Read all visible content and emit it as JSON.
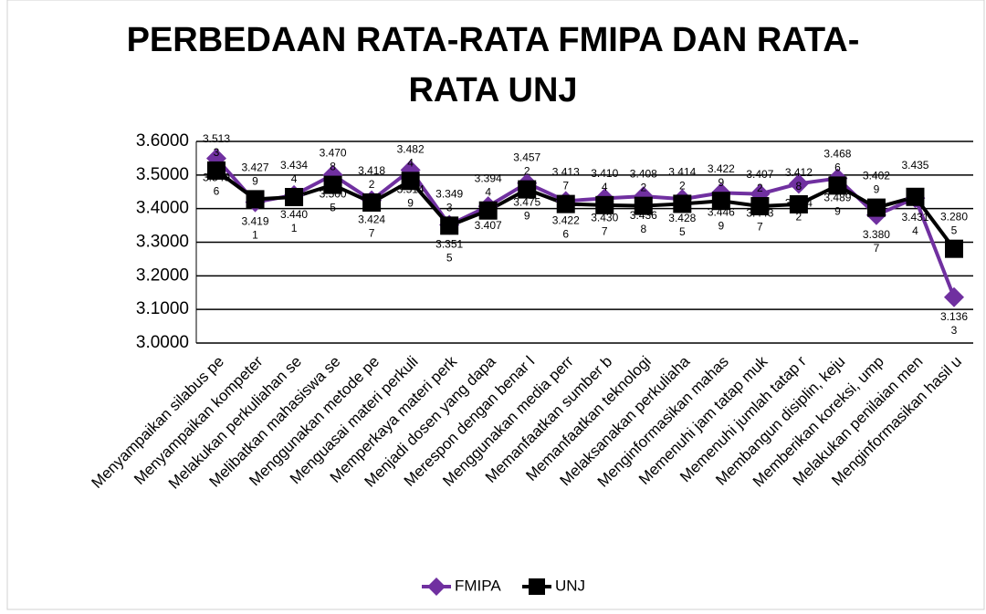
{
  "chart_data": {
    "type": "line",
    "title": "PERBEDAAN RATA-RATA FMIPA DAN RATA-RATA UNJ",
    "categories": [
      "Menyampaikan silabus pe",
      "Menyampaikan kompeter",
      "Melakukan perkuliahan se",
      "Melibatkan mahasiswa se",
      "Menggunakan metode pe",
      "Menguasai materi perkuli",
      "Memperkaya materi perk",
      "Menjadi dosen yang dapa",
      "Merespon dengan benar l",
      "Menggunakan media perr",
      "Memanfaatkan sumber b",
      "Memanfaatkan teknologi",
      "Melaksanakan perkuliaha",
      "Menginformasikan mahas",
      "Memenuhi jam tatap muk",
      "Memenuhi jumlah tatap r",
      "Membangun disiplin, keju",
      "Memberikan koreksi, ump",
      "Melakukan penilaian men",
      "Menginformasikan hasil u"
    ],
    "series": [
      {
        "name": "FMIPA",
        "color": "#7030a0",
        "marker": "diamond",
        "values": [
          3.5496,
          3.4191,
          3.4401,
          3.5005,
          3.4247,
          3.5149,
          3.3515,
          3.407,
          3.4759,
          3.4226,
          3.4307,
          3.4368,
          3.4285,
          3.4469,
          3.4437,
          3.4742,
          3.4899,
          3.3807,
          3.4314,
          3.1363
        ]
      },
      {
        "name": "UNJ",
        "color": "#000000",
        "marker": "square",
        "values": [
          3.5133,
          3.4279,
          3.4344,
          3.4708,
          3.4182,
          3.4824,
          3.3493,
          3.3944,
          3.4572,
          3.4137,
          3.4104,
          3.4082,
          3.4142,
          3.4229,
          3.4072,
          3.4128,
          3.4686,
          3.4029,
          3.435,
          3.2805
        ]
      }
    ],
    "ylim": [
      3.0,
      3.6
    ],
    "yticks": [
      {
        "value": 3.0,
        "label": "3.0000"
      },
      {
        "value": 3.1,
        "label": "3.1000"
      },
      {
        "value": 3.2,
        "label": "3.2000"
      },
      {
        "value": 3.3,
        "label": "3.3000"
      },
      {
        "value": 3.4,
        "label": "3.4000"
      },
      {
        "value": 3.5,
        "label": "3.5000"
      },
      {
        "value": 3.6,
        "label": "3.6000"
      }
    ],
    "grid": true,
    "legend": "bottom"
  }
}
